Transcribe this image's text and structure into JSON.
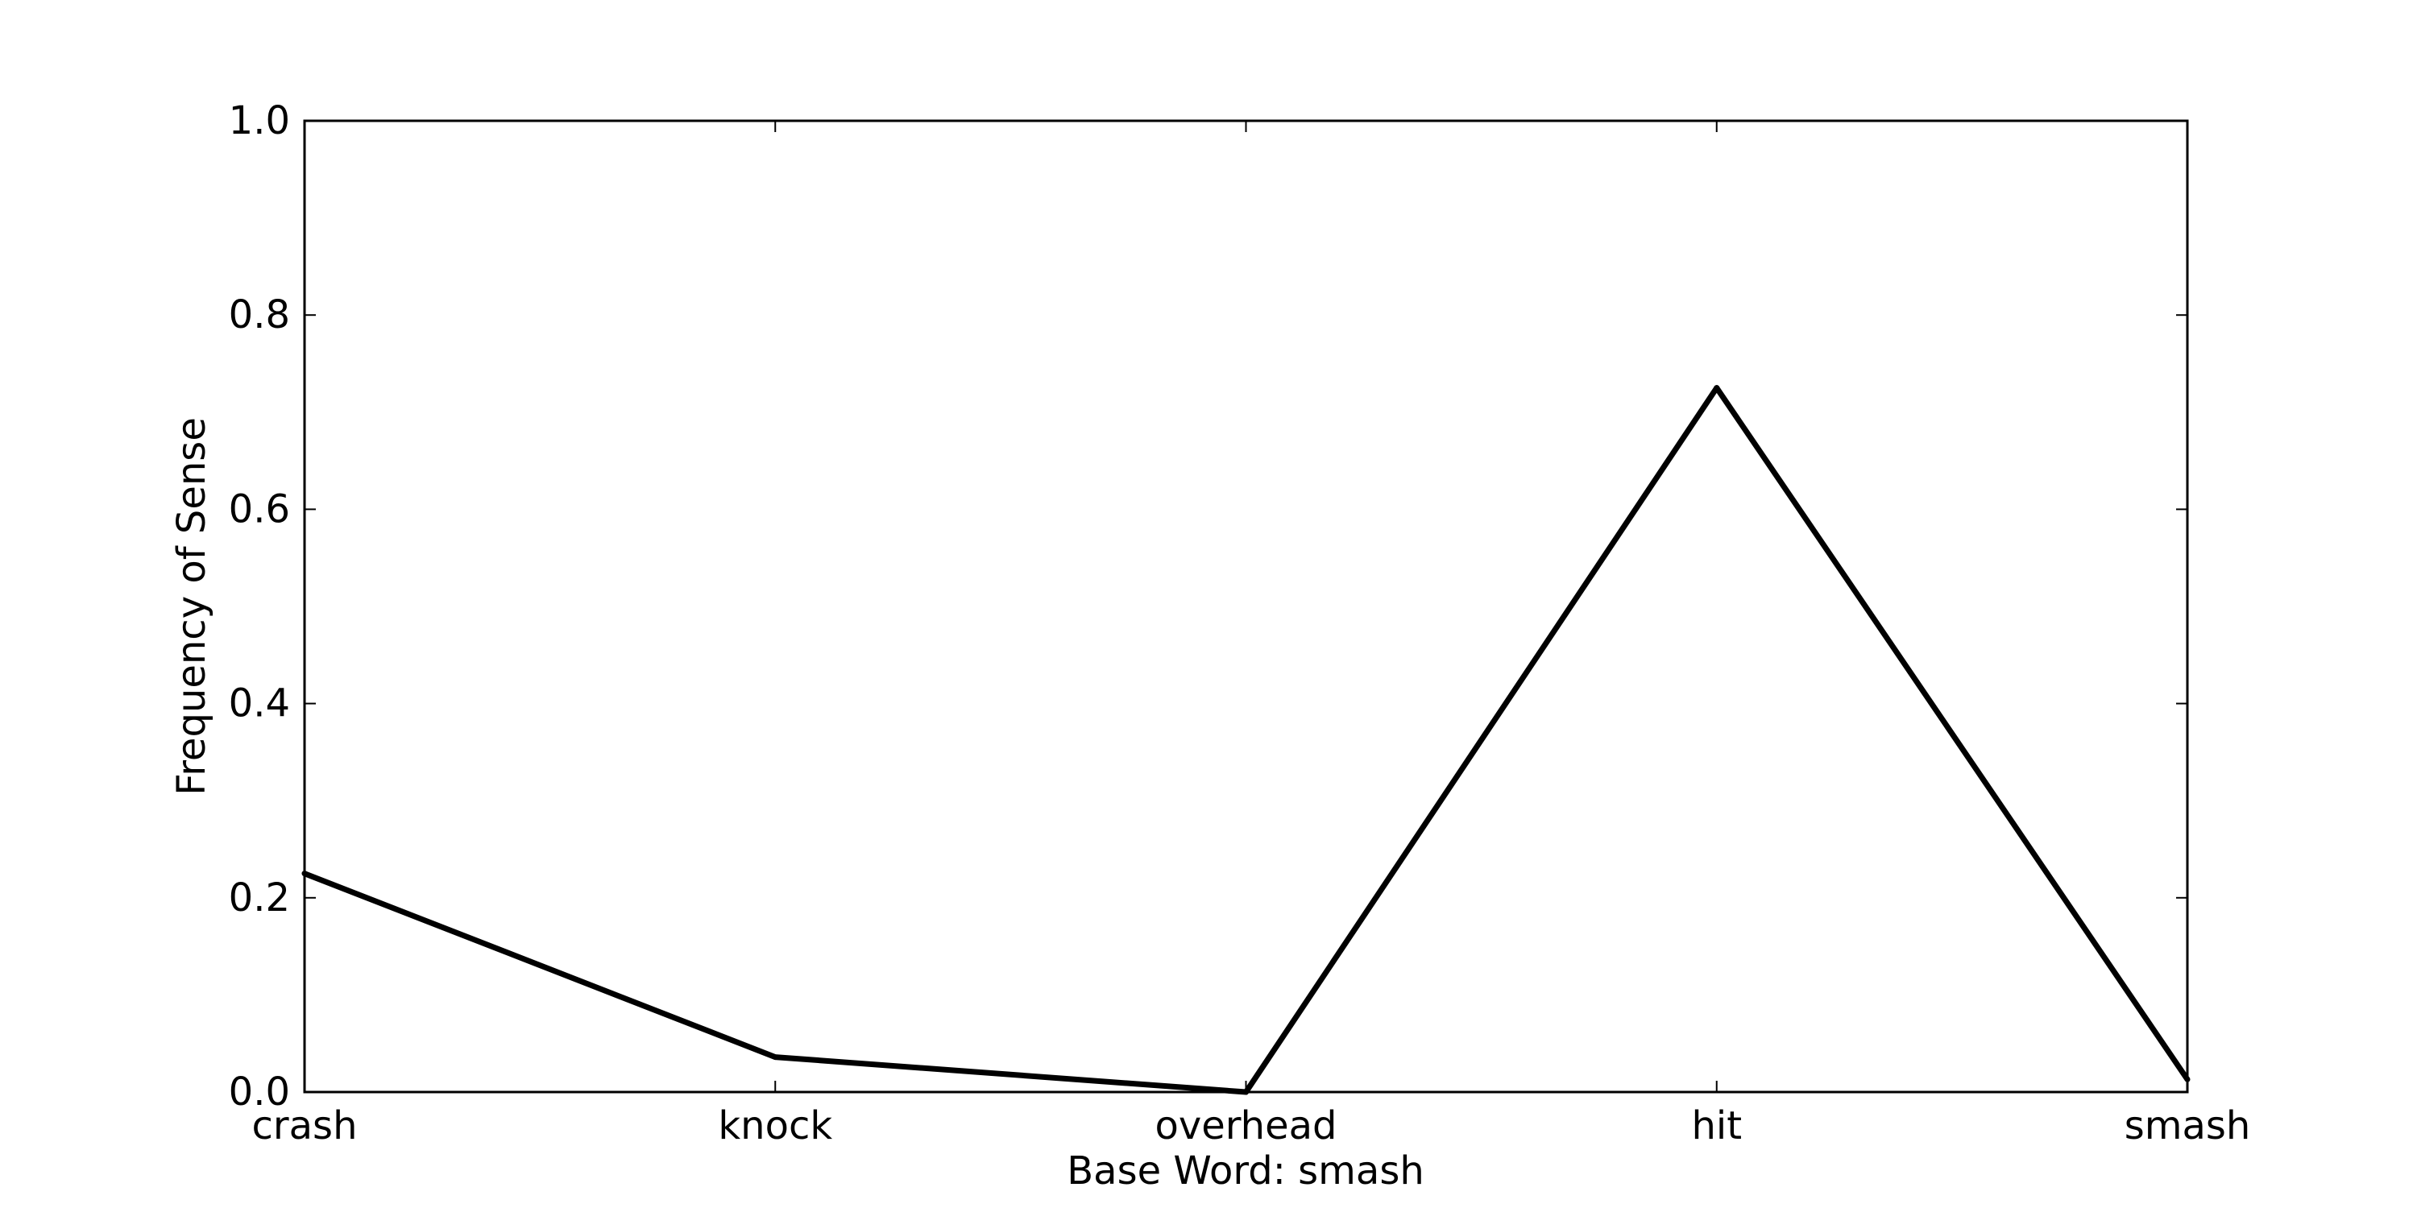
{
  "chart_data": {
    "type": "line",
    "categories": [
      "crash",
      "knock",
      "overhead",
      "hit",
      "smash"
    ],
    "series": [
      {
        "values": [
          0.225,
          0.036,
          0.0,
          0.725,
          0.013
        ]
      }
    ],
    "xlabel": "Base Word: smash",
    "ylabel": "Frequency of Sense",
    "ylim": [
      0.0,
      1.0
    ],
    "yticks": [
      "0.0",
      "0.2",
      "0.4",
      "0.6",
      "0.8",
      "1.0"
    ],
    "grid": false,
    "line_color": "#000000"
  }
}
